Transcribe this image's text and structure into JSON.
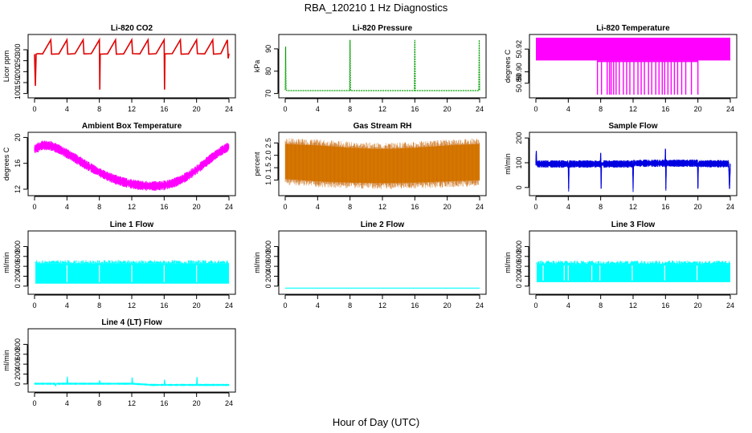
{
  "figure": {
    "title": "RBA_120210  1 Hz Diagnostics",
    "xlabel": "Hour of Day (UTC)"
  },
  "chart_data": [
    {
      "type": "line",
      "title": "Li-820 CO2",
      "ylabel": "Licor ppm",
      "color": "#e00000",
      "xlim": [
        0,
        24
      ],
      "xticks": [
        0,
        4,
        8,
        12,
        16,
        20,
        24
      ],
      "ylim": [
        95,
        355
      ],
      "yticks": [
        100,
        150,
        200,
        250,
        300
      ],
      "x": [
        0,
        0.1,
        0.2,
        0.4,
        1.0,
        2.0,
        2.1,
        3.0,
        4.0,
        4.1,
        5.0,
        6.0,
        6.1,
        7.0,
        8.0,
        8.05,
        8.1,
        9.0,
        10.0,
        10.1,
        11.0,
        12.0,
        12.1,
        13.0,
        14.0,
        14.1,
        15.0,
        16.0,
        16.05,
        16.1,
        17.0,
        18.0,
        18.1,
        19.0,
        20.0,
        20.1,
        21.0,
        22.0,
        22.1,
        23.0,
        23.8,
        23.9,
        24.0
      ],
      "y": [
        280,
        135,
        280,
        282,
        281,
        345,
        280,
        281,
        345,
        280,
        282,
        345,
        281,
        282,
        345,
        118,
        280,
        281,
        345,
        280,
        281,
        345,
        282,
        281,
        345,
        280,
        282,
        345,
        118,
        281,
        282,
        345,
        280,
        281,
        345,
        282,
        281,
        345,
        280,
        282,
        345,
        260,
        282
      ]
    },
    {
      "type": "line",
      "title": "Li-820 Pressure",
      "ylabel": "kPa",
      "color": "#00a000",
      "xlim": [
        0,
        24
      ],
      "xticks": [
        0,
        4,
        8,
        12,
        16,
        20,
        24
      ],
      "ylim": [
        69.5,
        95
      ],
      "yticks": [
        70,
        80,
        90
      ],
      "x": [
        0,
        0.05,
        0.1,
        0.2,
        4,
        7.95,
        8.0,
        8.05,
        12,
        15.95,
        16.0,
        16.05,
        20,
        23.9,
        23.95,
        24.0
      ],
      "y": [
        71.5,
        91,
        72,
        71.3,
        71.3,
        71.3,
        94,
        71.3,
        71.3,
        71.3,
        94,
        71.3,
        71.3,
        71.3,
        94,
        71.3
      ]
    },
    {
      "type": "area",
      "title": "Li-820 Temperature",
      "ylabel": "degrees C",
      "color": "#ff00ff",
      "xlim": [
        0,
        24
      ],
      "xticks": [
        0,
        4,
        8,
        12,
        16,
        20,
        24
      ],
      "ylim": [
        50.88,
        50.93
      ],
      "yticks": [
        50.89,
        50.9,
        50.92
      ],
      "ytick_labels": [
        "50.89",
        "50.90",
        "50.92"
      ],
      "band": {
        "low": 50.91,
        "high": 50.93
      },
      "dips_to": 50.88,
      "dip_x": [
        7.6,
        8.1,
        8.8,
        9.1,
        9.3,
        9.6,
        9.9,
        10.3,
        10.8,
        11.2,
        11.6,
        12.1,
        12.6,
        13.0,
        13.4,
        13.9,
        14.3,
        14.8,
        15.2,
        15.6,
        15.9,
        16.3,
        16.7,
        17.1,
        17.5,
        18.0,
        18.5,
        19.2,
        20.0
      ]
    },
    {
      "type": "line",
      "title": "Ambient Box Temperature",
      "ylabel": "degrees C",
      "color": "#ff00ff",
      "xlim": [
        0,
        24
      ],
      "xticks": [
        0,
        4,
        8,
        12,
        16,
        20,
        24
      ],
      "ylim": [
        11.5,
        20.3
      ],
      "yticks": [
        12,
        16,
        20
      ],
      "x": [
        0,
        1,
        2,
        3,
        4,
        5,
        6,
        7,
        8,
        9,
        10,
        11,
        12,
        13,
        14,
        15,
        16,
        17,
        18,
        19,
        20,
        21,
        22,
        23,
        24
      ],
      "y": [
        18.2,
        18.8,
        18.7,
        18.2,
        17.5,
        16.8,
        16.0,
        15.3,
        14.6,
        14.0,
        13.5,
        13.1,
        12.8,
        12.6,
        12.5,
        12.5,
        12.6,
        12.9,
        13.4,
        14.1,
        15.0,
        16.0,
        17.0,
        17.9,
        18.6
      ],
      "spread": 0.5
    },
    {
      "type": "area",
      "title": "Gas Stream RH",
      "ylabel": "percent",
      "color": "#f0a000",
      "xlim": [
        0,
        24
      ],
      "xticks": [
        0,
        4,
        8,
        12,
        16,
        20,
        24
      ],
      "ylim": [
        0.5,
        2.8
      ],
      "yticks": [
        1.0,
        1.5,
        2.0,
        2.5
      ],
      "ytick_labels": [
        "1.0",
        "1.5",
        "2.0",
        "2.5"
      ],
      "x": [
        0,
        4,
        8,
        12,
        16,
        20,
        24
      ],
      "low": [
        1.05,
        0.95,
        0.9,
        0.88,
        0.9,
        0.95,
        1.0
      ],
      "high": [
        2.45,
        2.4,
        2.3,
        2.25,
        2.3,
        2.4,
        2.45
      ]
    },
    {
      "type": "line",
      "title": "Sample Flow",
      "ylabel": "ml/min",
      "color": "#0000e0",
      "xlim": [
        0,
        24
      ],
      "xticks": [
        0,
        4,
        8,
        12,
        16,
        20,
        24
      ],
      "ylim": [
        -20,
        210
      ],
      "yticks": [
        0,
        100,
        200
      ],
      "x": [
        0,
        0.05,
        0.1,
        4.0,
        4.05,
        4.1,
        7.95,
        8.0,
        8.05,
        8.1,
        11.95,
        12.0,
        12.05,
        15.95,
        16.0,
        16.05,
        16.1,
        19.95,
        20.0,
        20.05,
        23.8,
        23.9,
        24.0
      ],
      "y": [
        100,
        145,
        95,
        95,
        -5,
        95,
        95,
        140,
        -5,
        95,
        95,
        -5,
        98,
        98,
        155,
        -5,
        98,
        98,
        -5,
        96,
        96,
        -5,
        96
      ],
      "spread": 10
    },
    {
      "type": "area",
      "title": "Line 1 Flow",
      "ylabel": "ml/min",
      "color": "#00ffff",
      "xlim": [
        0,
        24
      ],
      "xticks": [
        0,
        4,
        8,
        12,
        16,
        20,
        24
      ],
      "ylim": [
        -100,
        1050
      ],
      "yticks": [
        0,
        200,
        400,
        600,
        800
      ],
      "x": [
        0.1,
        24
      ],
      "low": 50,
      "high": 460,
      "gaps": [
        4,
        8,
        12,
        16,
        20
      ]
    },
    {
      "type": "line",
      "title": "Line 2 Flow",
      "ylabel": "ml/min",
      "color": "#00ffff",
      "xlim": [
        0,
        24
      ],
      "xticks": [
        0,
        4,
        8,
        12,
        16,
        20,
        24
      ],
      "ylim": [
        -100,
        1050
      ],
      "yticks": [
        0,
        200,
        400,
        600,
        800
      ],
      "x": [
        0,
        24
      ],
      "y": [
        -40,
        -40
      ]
    },
    {
      "type": "area",
      "title": "Line 3 Flow",
      "ylabel": "ml/min",
      "color": "#00ffff",
      "xlim": [
        0,
        24
      ],
      "xticks": [
        0,
        4,
        8,
        12,
        16,
        20,
        24
      ],
      "ylim": [
        -100,
        1050
      ],
      "yticks": [
        0,
        200,
        400,
        600,
        800
      ],
      "x": [
        0.1,
        24
      ],
      "low": 80,
      "high": 450,
      "gaps": [
        0.9,
        3.5,
        4.0,
        6.9,
        7.9,
        11.9,
        15.9,
        19.9
      ]
    },
    {
      "type": "line",
      "title": "Line 4 (LT) Flow",
      "ylabel": "ml/min",
      "color": "#00ffff",
      "xlim": [
        0,
        24
      ],
      "xticks": [
        0,
        4,
        8,
        12,
        16,
        20,
        24
      ],
      "ylim": [
        -100,
        1050
      ],
      "yticks": [
        0,
        200,
        400,
        600,
        800
      ],
      "x": [
        0,
        2.5,
        2.6,
        2.7,
        4.0,
        4.05,
        4.1,
        8.0,
        8.05,
        8.1,
        12.0,
        12.05,
        12.1,
        14.5,
        16.0,
        16.05,
        16.1,
        20.0,
        20.05,
        20.1,
        24.0
      ],
      "y": [
        5,
        5,
        -30,
        5,
        5,
        130,
        5,
        5,
        70,
        5,
        5,
        130,
        5,
        -20,
        -20,
        80,
        -20,
        -20,
        140,
        -20,
        -20
      ],
      "spread": 15
    }
  ]
}
